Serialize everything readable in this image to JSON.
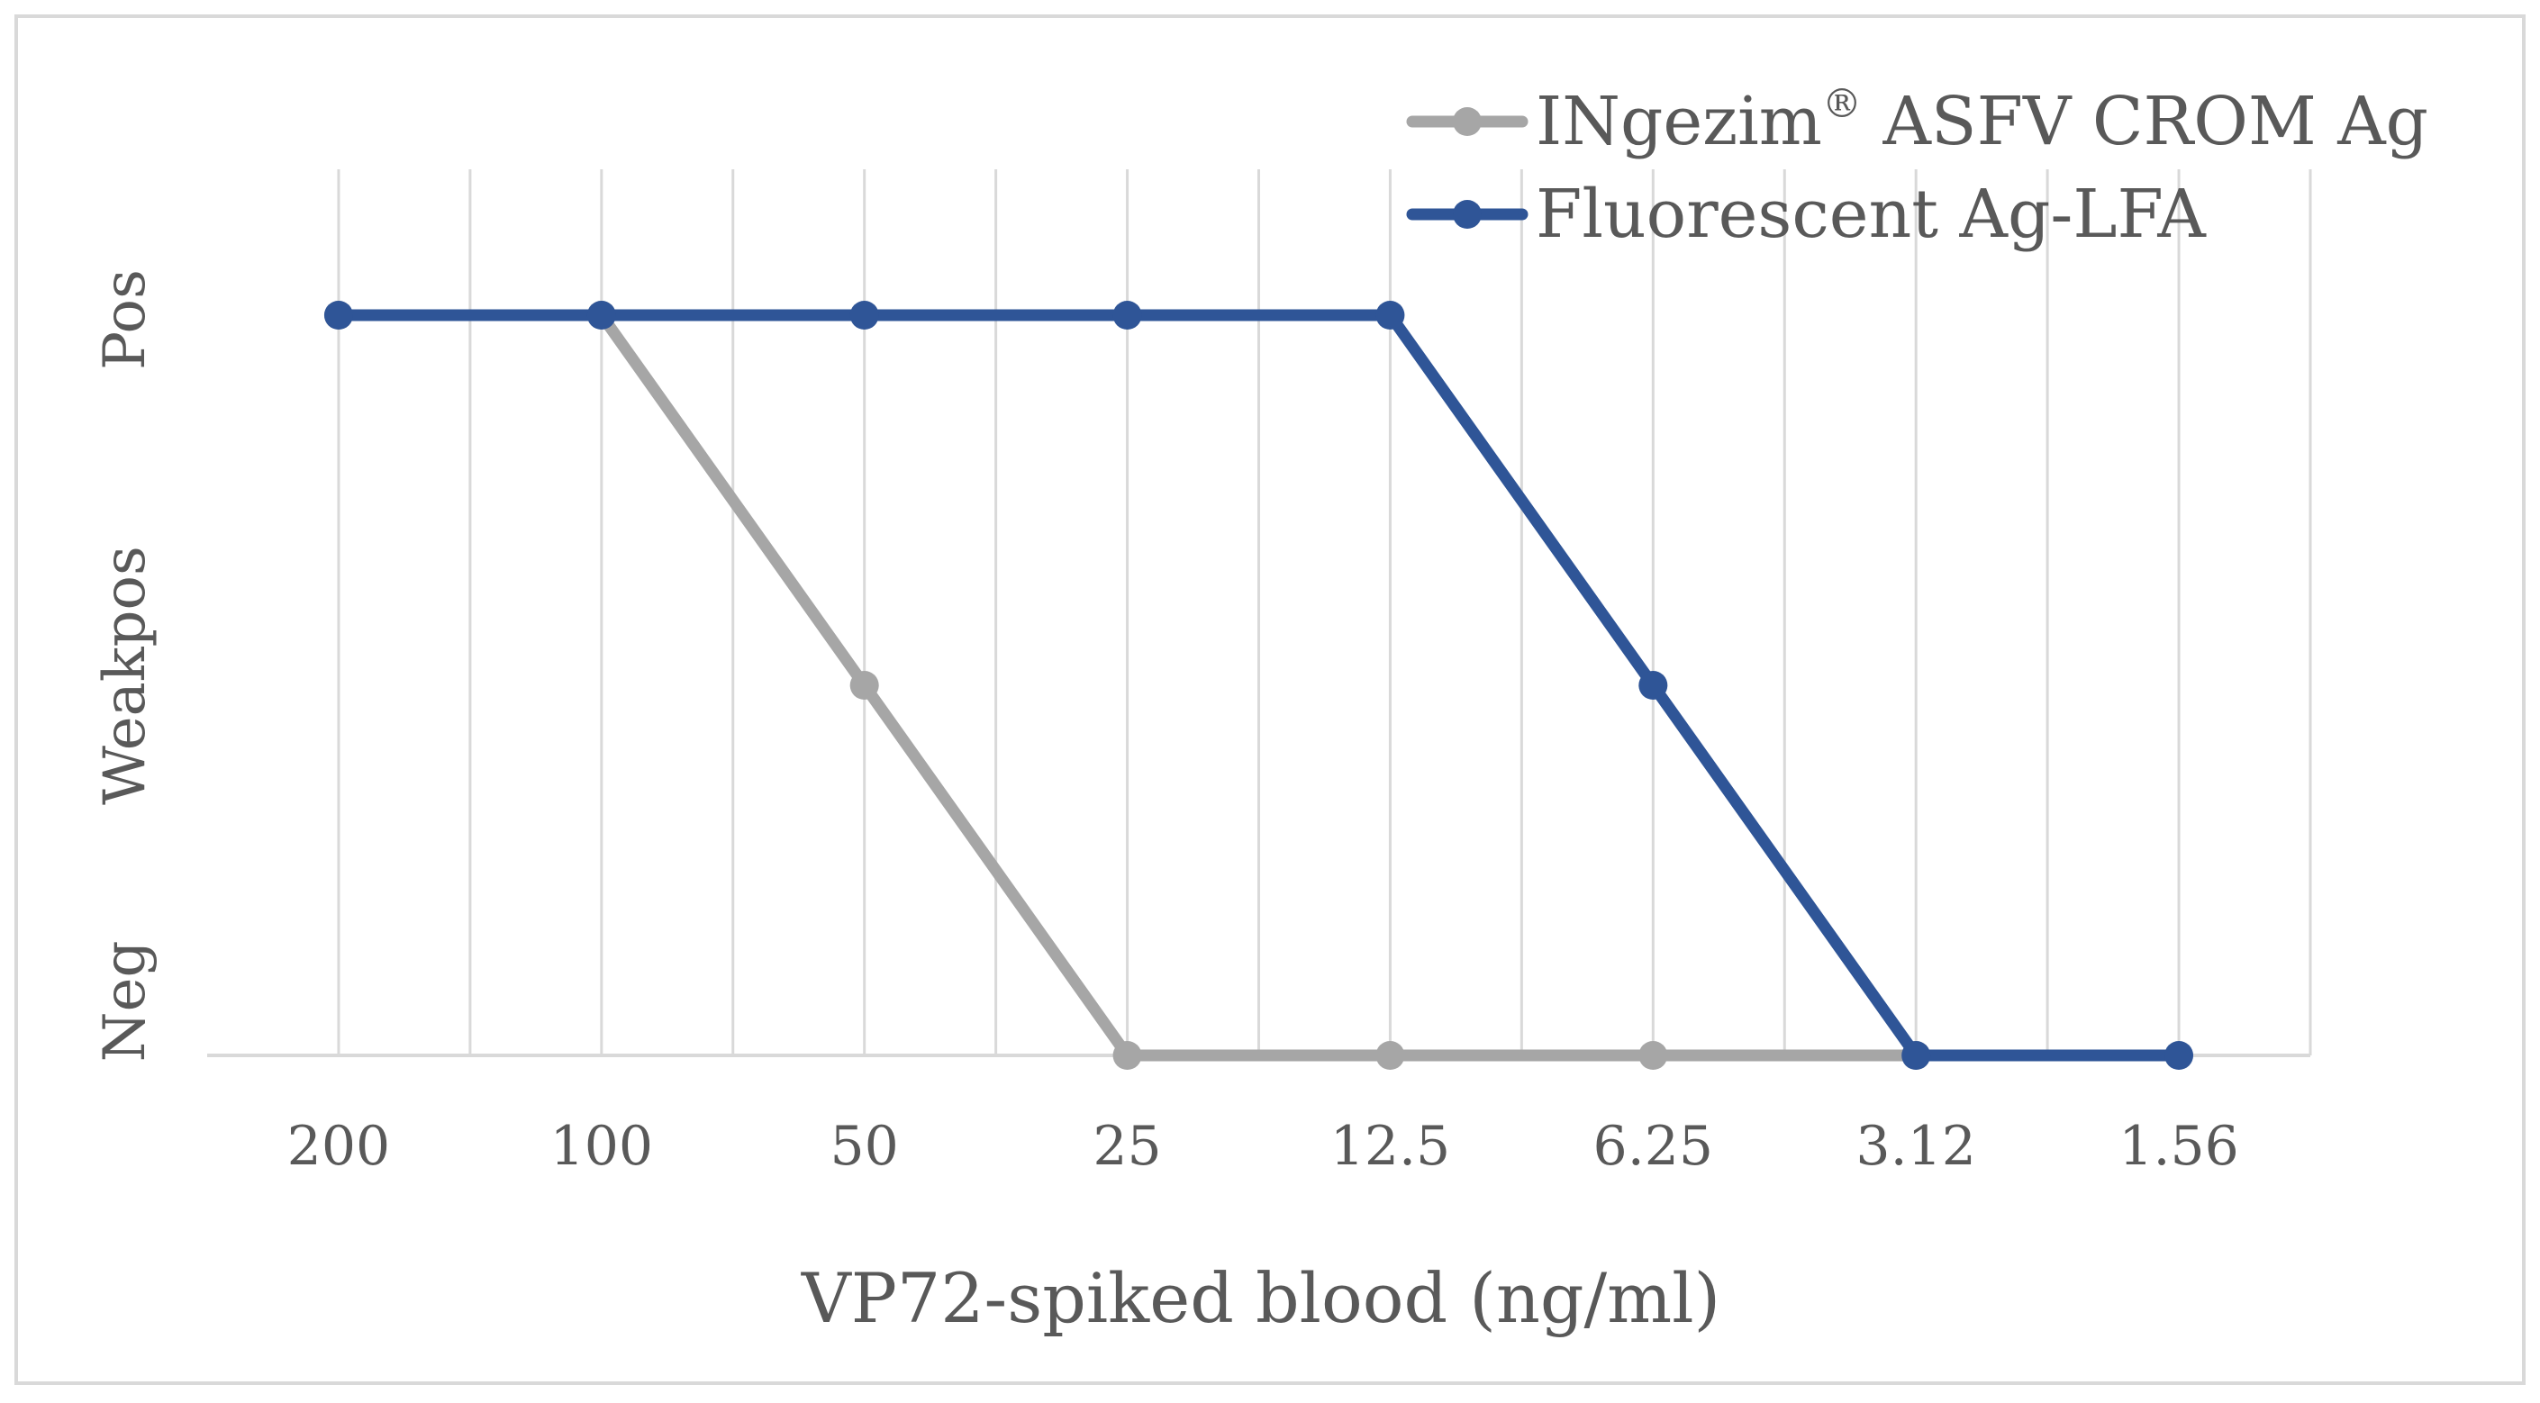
{
  "chart_data": {
    "type": "line",
    "title": "",
    "xlabel": "VP72-spiked blood (ng/ml)",
    "ylabel": "",
    "categories": [
      "200",
      "100",
      "50",
      "25",
      "12.5",
      "6.25",
      "3.12",
      "1.56"
    ],
    "y_levels": [
      "Neg",
      "Weakpos",
      "Pos"
    ],
    "series": [
      {
        "name": "INgezim® ASFV CROM Ag",
        "name_main": "INgezim",
        "name_sup": "®",
        "name_rest": " ASFV CROM Ag",
        "color": "#A6A6A6",
        "values": [
          "Pos",
          "Pos",
          "Weakpos",
          "Neg",
          "Neg",
          "Neg",
          "Neg",
          null
        ]
      },
      {
        "name": "Fluorescent Ag-LFA",
        "color": "#2F5597",
        "values": [
          "Pos",
          "Pos",
          "Pos",
          "Pos",
          "Pos",
          "Weakpos",
          "Neg",
          "Neg"
        ]
      }
    ],
    "grid": true,
    "legend_position": "top-right"
  }
}
